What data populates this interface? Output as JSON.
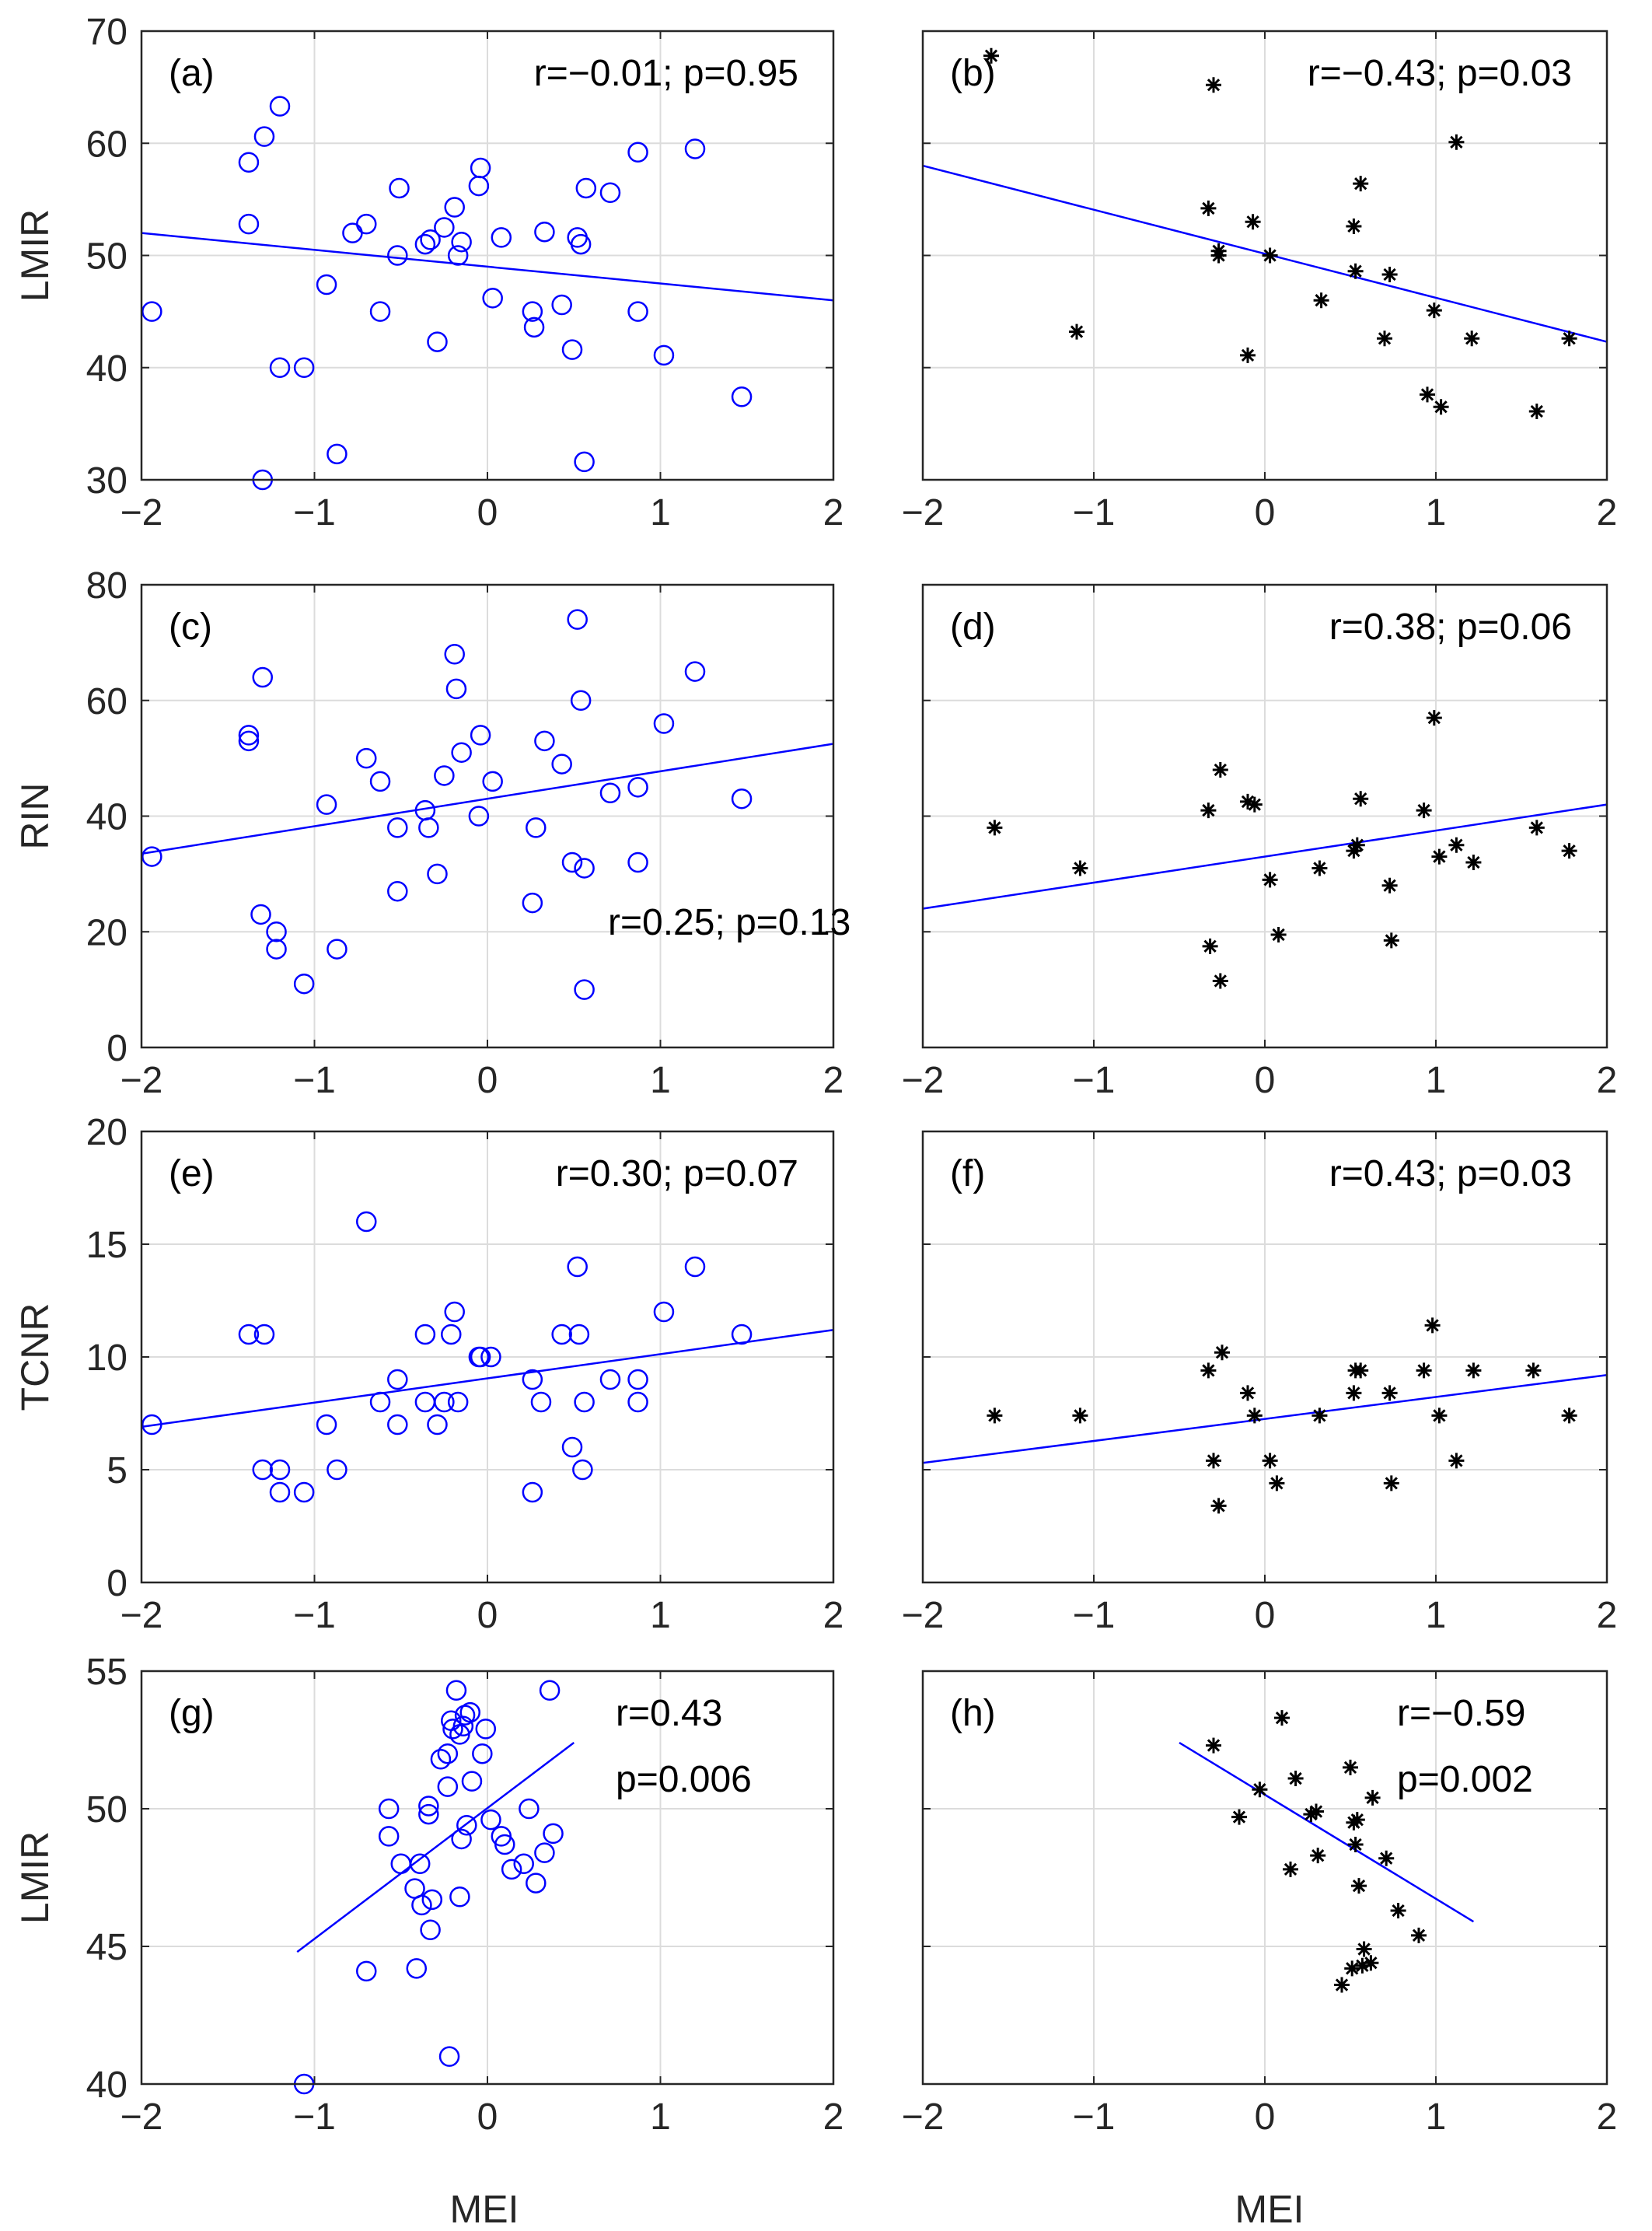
{
  "figure": {
    "x_axis_label": "MEI",
    "colors": {
      "series_left": "#0000ff",
      "series_right": "#000000",
      "fit_line": "#0000ff",
      "grid": "#dcdcdc",
      "axes": "#262626"
    }
  },
  "chart_data": [
    {
      "panel": "(a)",
      "type": "scatter",
      "marker": "circle",
      "color": "#0000ff",
      "ylabel": "LMIR",
      "xlabel": "",
      "xlim": [
        -2,
        2
      ],
      "ylim": [
        30,
        70
      ],
      "xticks": [
        -2,
        -1,
        0,
        1,
        2
      ],
      "yticks": [
        30,
        40,
        50,
        60,
        70
      ],
      "show_yticklabels": true,
      "grid": true,
      "annotations": [
        "r=−0.01; p=0.95"
      ],
      "annotation_position": "top-right",
      "fit_line": {
        "x": [
          -2,
          2
        ],
        "y": [
          52.0,
          46.0
        ]
      },
      "points": [
        [
          -1.94,
          45
        ],
        [
          -1.38,
          58.3
        ],
        [
          -1.38,
          52.8
        ],
        [
          -1.29,
          60.6
        ],
        [
          -1.2,
          63.3
        ],
        [
          -1.3,
          30
        ],
        [
          -1.2,
          40
        ],
        [
          -1.06,
          40
        ],
        [
          -0.93,
          47.4
        ],
        [
          -0.87,
          32.3
        ],
        [
          -0.78,
          52
        ],
        [
          -0.7,
          52.8
        ],
        [
          -0.62,
          45
        ],
        [
          -0.51,
          56
        ],
        [
          -0.52,
          50
        ],
        [
          -0.36,
          51
        ],
        [
          -0.33,
          51.4
        ],
        [
          -0.29,
          42.3
        ],
        [
          -0.25,
          52.5
        ],
        [
          -0.19,
          54.3
        ],
        [
          -0.17,
          50
        ],
        [
          -0.15,
          51.2
        ],
        [
          -0.05,
          56.2
        ],
        [
          -0.04,
          57.8
        ],
        [
          0.03,
          46.2
        ],
        [
          0.08,
          51.6
        ],
        [
          0.33,
          52.1
        ],
        [
          0.26,
          45
        ],
        [
          0.27,
          43.6
        ],
        [
          0.43,
          45.6
        ],
        [
          0.49,
          41.6
        ],
        [
          0.52,
          51.6
        ],
        [
          0.54,
          51
        ],
        [
          0.56,
          31.6
        ],
        [
          0.57,
          56
        ],
        [
          0.71,
          55.6
        ],
        [
          0.87,
          59.2
        ],
        [
          0.87,
          45
        ],
        [
          1.02,
          41.1
        ],
        [
          1.2,
          59.5
        ],
        [
          1.47,
          37.4
        ]
      ]
    },
    {
      "panel": "(b)",
      "type": "scatter",
      "marker": "asterisk",
      "color": "#000000",
      "ylabel": "",
      "xlabel": "",
      "xlim": [
        -2,
        2
      ],
      "ylim": [
        30,
        70
      ],
      "xticks": [
        -2,
        -1,
        0,
        1,
        2
      ],
      "yticks": [
        30,
        40,
        50,
        60,
        70
      ],
      "show_yticklabels": false,
      "grid": true,
      "annotations": [
        "r=−0.43; p=0.03"
      ],
      "annotation_position": "top-right",
      "fit_line": {
        "x": [
          -2,
          2
        ],
        "y": [
          58.0,
          42.3
        ]
      },
      "points": [
        [
          -1.6,
          67.8
        ],
        [
          -1.1,
          43.2
        ],
        [
          -0.3,
          65.2
        ],
        [
          -0.33,
          54.2
        ],
        [
          -0.27,
          50
        ],
        [
          -0.27,
          50.4
        ],
        [
          -0.1,
          41.1
        ],
        [
          -0.07,
          53
        ],
        [
          0.03,
          50
        ],
        [
          0.33,
          46
        ],
        [
          0.52,
          52.6
        ],
        [
          0.53,
          48.6
        ],
        [
          0.56,
          56.4
        ],
        [
          0.73,
          48.3
        ],
        [
          0.7,
          42.6
        ],
        [
          0.95,
          37.6
        ],
        [
          0.99,
          45.1
        ],
        [
          1.03,
          36.5
        ],
        [
          1.12,
          60.1
        ],
        [
          1.21,
          42.6
        ],
        [
          1.59,
          36.1
        ],
        [
          1.78,
          42.6
        ]
      ]
    },
    {
      "panel": "(c)",
      "type": "scatter",
      "marker": "circle",
      "color": "#0000ff",
      "ylabel": "RIN",
      "xlabel": "",
      "xlim": [
        -2,
        2
      ],
      "ylim": [
        0,
        80
      ],
      "xticks": [
        -2,
        -1,
        0,
        1,
        2
      ],
      "yticks": [
        0,
        20,
        40,
        60,
        80
      ],
      "show_yticklabels": true,
      "grid": true,
      "annotations": [
        "r=0.25; p=0.13"
      ],
      "annotation_position": "lower-middle",
      "fit_line": {
        "x": [
          -2,
          2
        ],
        "y": [
          33.5,
          52.5
        ]
      },
      "points": [
        [
          -1.94,
          33
        ],
        [
          -1.38,
          54
        ],
        [
          -1.38,
          53
        ],
        [
          -1.3,
          64
        ],
        [
          -1.31,
          23
        ],
        [
          -1.22,
          20
        ],
        [
          -1.22,
          17
        ],
        [
          -1.06,
          11
        ],
        [
          -0.93,
          42
        ],
        [
          -0.87,
          17
        ],
        [
          -0.7,
          50
        ],
        [
          -0.62,
          46
        ],
        [
          -0.52,
          38
        ],
        [
          -0.52,
          27
        ],
        [
          -0.36,
          41
        ],
        [
          -0.34,
          38
        ],
        [
          -0.29,
          30
        ],
        [
          -0.25,
          47
        ],
        [
          -0.19,
          68
        ],
        [
          -0.18,
          62
        ],
        [
          -0.15,
          51
        ],
        [
          -0.05,
          40
        ],
        [
          -0.04,
          54
        ],
        [
          0.03,
          46
        ],
        [
          0.26,
          25
        ],
        [
          0.28,
          38
        ],
        [
          0.33,
          53
        ],
        [
          0.43,
          49
        ],
        [
          0.49,
          32
        ],
        [
          0.52,
          74
        ],
        [
          0.54,
          60
        ],
        [
          0.56,
          31
        ],
        [
          0.56,
          10
        ],
        [
          0.71,
          44
        ],
        [
          0.87,
          45
        ],
        [
          0.87,
          32
        ],
        [
          1.02,
          56
        ],
        [
          1.2,
          65
        ],
        [
          1.47,
          43
        ]
      ]
    },
    {
      "panel": "(d)",
      "type": "scatter",
      "marker": "asterisk",
      "color": "#000000",
      "ylabel": "",
      "xlabel": "",
      "xlim": [
        -2,
        2
      ],
      "ylim": [
        0,
        80
      ],
      "xticks": [
        -2,
        -1,
        0,
        1,
        2
      ],
      "yticks": [
        0,
        20,
        40,
        60,
        80
      ],
      "show_yticklabels": false,
      "grid": true,
      "annotations": [
        "r=0.38; p=0.06"
      ],
      "annotation_position": "top-right",
      "fit_line": {
        "x": [
          -2,
          2
        ],
        "y": [
          24,
          42
        ]
      },
      "points": [
        [
          -1.58,
          38
        ],
        [
          -1.08,
          31
        ],
        [
          -0.33,
          41
        ],
        [
          -0.32,
          17.5
        ],
        [
          -0.26,
          48
        ],
        [
          -0.26,
          11.5
        ],
        [
          -0.1,
          42.5
        ],
        [
          -0.06,
          42
        ],
        [
          0.03,
          29
        ],
        [
          0.08,
          19.5
        ],
        [
          0.32,
          31
        ],
        [
          0.52,
          34
        ],
        [
          0.54,
          35
        ],
        [
          0.56,
          43
        ],
        [
          0.73,
          28
        ],
        [
          0.74,
          18.5
        ],
        [
          0.93,
          41
        ],
        [
          0.99,
          57
        ],
        [
          1.02,
          33
        ],
        [
          1.12,
          35
        ],
        [
          1.22,
          32
        ],
        [
          1.59,
          38
        ],
        [
          1.78,
          34
        ]
      ]
    },
    {
      "panel": "(e)",
      "type": "scatter",
      "marker": "circle",
      "color": "#0000ff",
      "ylabel": "TCNR",
      "xlabel": "",
      "xlim": [
        -2,
        2
      ],
      "ylim": [
        0,
        20
      ],
      "xticks": [
        -2,
        -1,
        0,
        1,
        2
      ],
      "yticks": [
        0,
        5,
        10,
        15,
        20
      ],
      "show_yticklabels": true,
      "grid": true,
      "annotations": [
        "r=0.30; p=0.07"
      ],
      "annotation_position": "top-right",
      "fit_line": {
        "x": [
          -2,
          2
        ],
        "y": [
          6.9,
          11.2
        ]
      },
      "points": [
        [
          -1.94,
          7
        ],
        [
          -1.38,
          11
        ],
        [
          -1.29,
          11
        ],
        [
          -1.3,
          5
        ],
        [
          -1.2,
          5
        ],
        [
          -1.2,
          4
        ],
        [
          -1.06,
          4
        ],
        [
          -0.93,
          7
        ],
        [
          -0.87,
          5
        ],
        [
          -0.7,
          16
        ],
        [
          -0.62,
          8
        ],
        [
          -0.52,
          9
        ],
        [
          -0.52,
          7
        ],
        [
          -0.36,
          11
        ],
        [
          -0.36,
          8
        ],
        [
          -0.29,
          7
        ],
        [
          -0.25,
          8
        ],
        [
          -0.21,
          11
        ],
        [
          -0.19,
          12
        ],
        [
          -0.17,
          8
        ],
        [
          -0.05,
          10
        ],
        [
          -0.04,
          10
        ],
        [
          0.02,
          10
        ],
        [
          0.26,
          9
        ],
        [
          0.26,
          4
        ],
        [
          0.31,
          8
        ],
        [
          0.43,
          11
        ],
        [
          0.49,
          6
        ],
        [
          0.52,
          14
        ],
        [
          0.53,
          11
        ],
        [
          0.55,
          5
        ],
        [
          0.56,
          8
        ],
        [
          0.71,
          9
        ],
        [
          0.87,
          9
        ],
        [
          0.87,
          8
        ],
        [
          1.02,
          12
        ],
        [
          1.2,
          14
        ],
        [
          1.47,
          11
        ]
      ]
    },
    {
      "panel": "(f)",
      "type": "scatter",
      "marker": "asterisk",
      "color": "#000000",
      "ylabel": "",
      "xlabel": "",
      "xlim": [
        -2,
        2
      ],
      "ylim": [
        0,
        20
      ],
      "xticks": [
        -2,
        -1,
        0,
        1,
        2
      ],
      "yticks": [
        0,
        5,
        10,
        15,
        20
      ],
      "show_yticklabels": false,
      "grid": true,
      "annotations": [
        "r=0.43; p=0.03"
      ],
      "annotation_position": "top-right",
      "fit_line": {
        "x": [
          -2,
          2
        ],
        "y": [
          5.3,
          9.2
        ]
      },
      "points": [
        [
          -1.58,
          7.4
        ],
        [
          -1.08,
          7.4
        ],
        [
          -0.33,
          9.4
        ],
        [
          -0.3,
          5.4
        ],
        [
          -0.27,
          3.4
        ],
        [
          -0.25,
          10.2
        ],
        [
          -0.1,
          8.4
        ],
        [
          -0.06,
          7.4
        ],
        [
          0.03,
          5.4
        ],
        [
          0.07,
          4.4
        ],
        [
          0.32,
          7.4
        ],
        [
          0.52,
          8.4
        ],
        [
          0.53,
          9.4
        ],
        [
          0.56,
          9.4
        ],
        [
          0.73,
          8.4
        ],
        [
          0.74,
          4.4
        ],
        [
          0.93,
          9.4
        ],
        [
          0.98,
          11.4
        ],
        [
          1.02,
          7.4
        ],
        [
          1.12,
          5.4
        ],
        [
          1.22,
          9.4
        ],
        [
          1.57,
          9.4
        ],
        [
          1.78,
          7.4
        ]
      ]
    },
    {
      "panel": "(g)",
      "type": "scatter",
      "marker": "circle",
      "color": "#0000ff",
      "ylabel": "LMIR",
      "xlabel": "MEI",
      "xlim": [
        -2,
        2
      ],
      "ylim": [
        40,
        55
      ],
      "xticks": [
        -2,
        -1,
        0,
        1,
        2
      ],
      "yticks": [
        40,
        45,
        50,
        55
      ],
      "show_yticklabels": true,
      "grid": true,
      "annotations": [
        "r=0.43",
        "p=0.006"
      ],
      "annotation_position": "top-right",
      "fit_line": {
        "x": [
          -1.1,
          0.5
        ],
        "y": [
          44.8,
          52.4
        ]
      },
      "points": [
        [
          -1.06,
          40
        ],
        [
          -0.7,
          44.1
        ],
        [
          -0.57,
          50
        ],
        [
          -0.57,
          49
        ],
        [
          -0.5,
          48
        ],
        [
          -0.42,
          47.1
        ],
        [
          -0.41,
          44.2
        ],
        [
          -0.38,
          46.5
        ],
        [
          -0.39,
          48
        ],
        [
          -0.34,
          50.1
        ],
        [
          -0.34,
          49.8
        ],
        [
          -0.33,
          45.6
        ],
        [
          -0.32,
          46.7
        ],
        [
          -0.27,
          51.8
        ],
        [
          -0.23,
          50.8
        ],
        [
          -0.23,
          52
        ],
        [
          -0.22,
          41
        ],
        [
          -0.21,
          53.2
        ],
        [
          -0.2,
          52.9
        ],
        [
          -0.18,
          54.3
        ],
        [
          -0.16,
          46.8
        ],
        [
          -0.16,
          52.7
        ],
        [
          -0.15,
          48.9
        ],
        [
          -0.14,
          53
        ],
        [
          -0.13,
          53.4
        ],
        [
          -0.12,
          49.4
        ],
        [
          -0.1,
          53.5
        ],
        [
          -0.09,
          51
        ],
        [
          -0.03,
          52
        ],
        [
          -0.01,
          52.9
        ],
        [
          0.02,
          49.6
        ],
        [
          0.08,
          49
        ],
        [
          0.1,
          48.7
        ],
        [
          0.14,
          47.8
        ],
        [
          0.21,
          48
        ],
        [
          0.24,
          50
        ],
        [
          0.28,
          47.3
        ],
        [
          0.33,
          48.4
        ],
        [
          0.36,
          54.3
        ],
        [
          0.38,
          49.1
        ]
      ]
    },
    {
      "panel": "(h)",
      "type": "scatter",
      "marker": "asterisk",
      "color": "#000000",
      "ylabel": "",
      "xlabel": "MEI",
      "xlim": [
        -2,
        2
      ],
      "ylim": [
        40,
        55
      ],
      "xticks": [
        -2,
        -1,
        0,
        1,
        2
      ],
      "yticks": [
        40,
        45,
        50,
        55
      ],
      "show_yticklabels": false,
      "grid": true,
      "annotations": [
        "r=−0.59",
        "p=0.002"
      ],
      "annotation_position": "top-right",
      "fit_line": {
        "x": [
          -0.5,
          1.22
        ],
        "y": [
          52.4,
          45.9
        ]
      },
      "points": [
        [
          -0.3,
          52.3
        ],
        [
          -0.15,
          49.7
        ],
        [
          -0.03,
          50.7
        ],
        [
          0.1,
          53.3
        ],
        [
          0.15,
          47.8
        ],
        [
          0.18,
          51.1
        ],
        [
          0.27,
          49.8
        ],
        [
          0.3,
          49.9
        ],
        [
          0.31,
          48.3
        ],
        [
          0.45,
          43.6
        ],
        [
          0.5,
          51.5
        ],
        [
          0.51,
          44.2
        ],
        [
          0.52,
          49.5
        ],
        [
          0.53,
          48.7
        ],
        [
          0.54,
          49.6
        ],
        [
          0.55,
          47.2
        ],
        [
          0.57,
          44.3
        ],
        [
          0.58,
          44.9
        ],
        [
          0.62,
          44.4
        ],
        [
          0.63,
          50.4
        ],
        [
          0.71,
          48.2
        ],
        [
          0.78,
          46.3
        ],
        [
          0.9,
          45.4
        ]
      ]
    }
  ]
}
